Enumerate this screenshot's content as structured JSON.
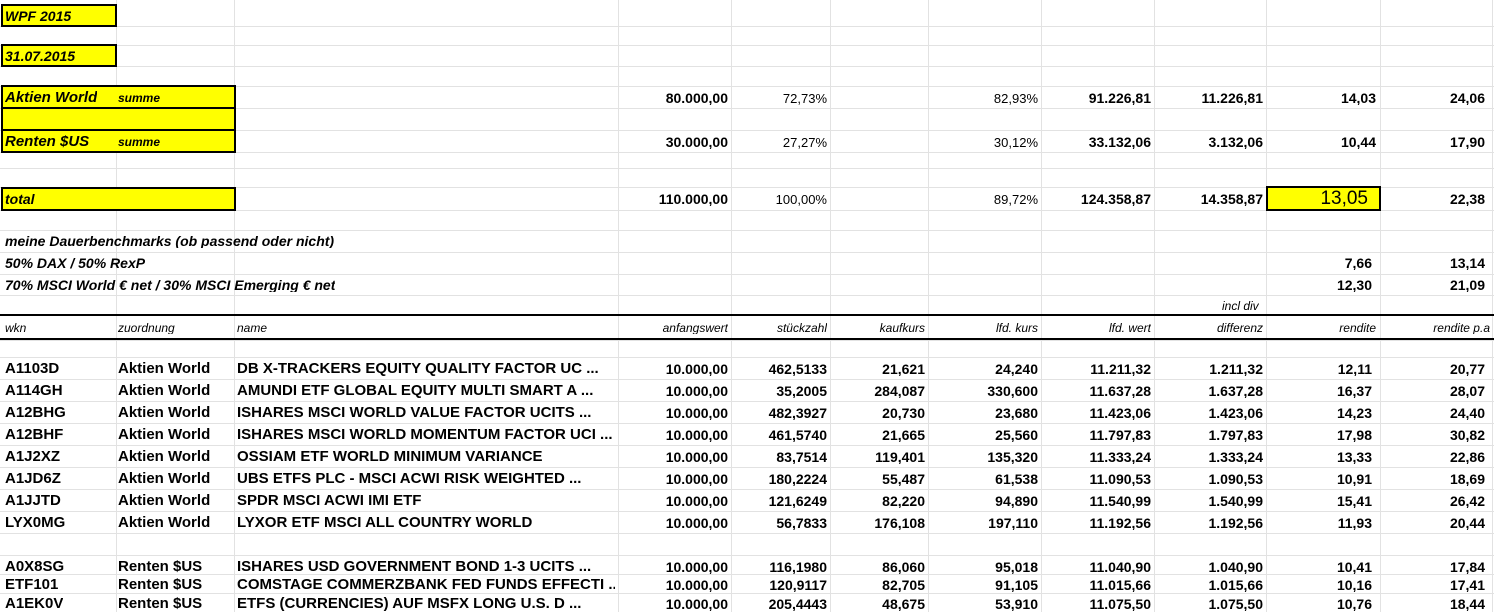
{
  "title_cells": {
    "wpf": "WPF 2015",
    "date": "31.07.2015"
  },
  "summary": {
    "aktien": {
      "label": "Aktien World",
      "sub": "summe",
      "anfangswert": "80.000,00",
      "pct1": "72,73%",
      "pct2": "82,93%",
      "lfd_wert": "91.226,81",
      "differenz": "11.226,81",
      "rendite": "14,03",
      "rendite_pa": "24,06"
    },
    "renten": {
      "label": "Renten $US",
      "sub": "summe",
      "anfangswert": "30.000,00",
      "pct1": "27,27%",
      "pct2": "30,12%",
      "lfd_wert": "33.132,06",
      "differenz": "3.132,06",
      "rendite": "10,44",
      "rendite_pa": "17,90"
    },
    "total": {
      "label": "total",
      "anfangswert": "110.000,00",
      "pct1": "100,00%",
      "pct2": "89,72%",
      "lfd_wert": "124.358,87",
      "differenz": "14.358,87",
      "rendite": "13,05",
      "rendite_pa": "22,38"
    }
  },
  "benchmarks": {
    "heading": "meine Dauerbenchmarks (ob passend oder nicht)",
    "b1": {
      "label": "50% DAX / 50% RexP",
      "rendite": "7,66",
      "rendite_pa": "13,14"
    },
    "b2": {
      "label": "70% MSCI World € net / 30% MSCI Emerging € net",
      "rendite": "12,30",
      "rendite_pa": "21,09"
    }
  },
  "incl_div": "incl div",
  "headers": {
    "wkn": "wkn",
    "zuordnung": "zuordnung",
    "name": "name",
    "anfangswert": "anfangswert",
    "stueckzahl": "stückzahl",
    "kaufkurs": "kaufkurs",
    "lfd_kurs": "lfd. kurs",
    "lfd_wert": "lfd. wert",
    "differenz": "differenz",
    "rendite": "rendite",
    "rendite_pa": "rendite p.a"
  },
  "rows": [
    [
      "A1103D",
      "Aktien World",
      "DB X-TRACKERS EQUITY QUALITY FACTOR UC ...",
      "10.000,00",
      "462,5133",
      "21,621",
      "24,240",
      "11.211,32",
      "1.211,32",
      "12,11",
      "20,77"
    ],
    [
      "A114GH",
      "Aktien World",
      "AMUNDI ETF GLOBAL EQUITY MULTI SMART A ...",
      "10.000,00",
      "35,2005",
      "284,087",
      "330,600",
      "11.637,28",
      "1.637,28",
      "16,37",
      "28,07"
    ],
    [
      "A12BHG",
      "Aktien World",
      "ISHARES MSCI WORLD VALUE FACTOR UCITS ...",
      "10.000,00",
      "482,3927",
      "20,730",
      "23,680",
      "11.423,06",
      "1.423,06",
      "14,23",
      "24,40"
    ],
    [
      "A12BHF",
      "Aktien World",
      "ISHARES MSCI WORLD MOMENTUM FACTOR UCI ...",
      "10.000,00",
      "461,5740",
      "21,665",
      "25,560",
      "11.797,83",
      "1.797,83",
      "17,98",
      "30,82"
    ],
    [
      "A1J2XZ",
      "Aktien World",
      "OSSIAM ETF WORLD MINIMUM VARIANCE",
      "10.000,00",
      "83,7514",
      "119,401",
      "135,320",
      "11.333,24",
      "1.333,24",
      "13,33",
      "22,86"
    ],
    [
      "A1JD6Z",
      "Aktien World",
      "UBS ETFS PLC - MSCI ACWI RISK WEIGHTED ...",
      "10.000,00",
      "180,2224",
      "55,487",
      "61,538",
      "11.090,53",
      "1.090,53",
      "10,91",
      "18,69"
    ],
    [
      "A1JJTD",
      "Aktien World",
      "SPDR MSCI ACWI IMI ETF",
      "10.000,00",
      "121,6249",
      "82,220",
      "94,890",
      "11.540,99",
      "1.540,99",
      "15,41",
      "26,42"
    ],
    [
      "LYX0MG",
      "Aktien World",
      "LYXOR ETF MSCI ALL COUNTRY WORLD",
      "10.000,00",
      "56,7833",
      "176,108",
      "197,110",
      "11.192,56",
      "1.192,56",
      "11,93",
      "20,44"
    ],
    [
      "A0X8SG",
      "Renten $US",
      "ISHARES USD GOVERNMENT BOND 1-3 UCITS ...",
      "10.000,00",
      "116,1980",
      "86,060",
      "95,018",
      "11.040,90",
      "1.040,90",
      "10,41",
      "17,84"
    ],
    [
      "ETF101",
      "Renten $US",
      "COMSTAGE COMMERZBANK FED FUNDS EFFECTI ...",
      "10.000,00",
      "120,9117",
      "82,705",
      "91,105",
      "11.015,66",
      "1.015,66",
      "10,16",
      "17,41"
    ],
    [
      "A1EK0V",
      "Renten $US",
      "ETFS (CURRENCIES) AUF MSFX LONG U.S. D ...",
      "10.000,00",
      "205,4443",
      "48,675",
      "53,910",
      "11.075,50",
      "1.075,50",
      "10,76",
      "18,44"
    ]
  ]
}
